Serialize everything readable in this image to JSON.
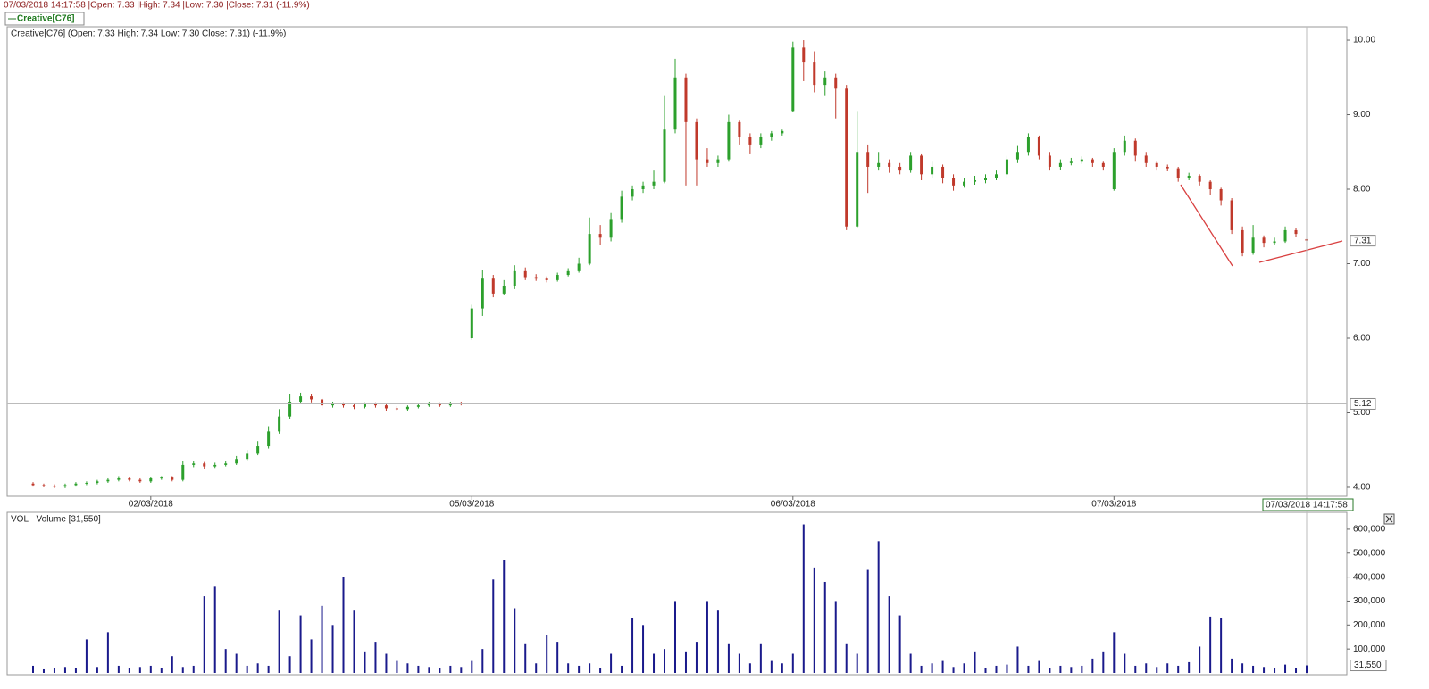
{
  "header": {
    "info": "07/03/2018 14:17:58 |Open: 7.33 |High: 7.34 |Low: 7.30 |Close: 7.31 (-11.9%)",
    "tab": "Creative[C76]"
  },
  "chart_data": [
    {
      "type": "candlestick",
      "title": "Creative[C76] (Open: 7.33  High: 7.34  Low: 7.30  Close: 7.31) (-11.9%)",
      "categories": [
        null,
        null,
        null,
        null,
        null,
        null,
        null,
        null,
        null,
        null,
        null,
        "02/03/2018",
        null,
        null,
        null,
        null,
        null,
        null,
        null,
        null,
        null,
        null,
        null,
        null,
        null,
        null,
        null,
        null,
        null,
        null,
        null,
        null,
        null,
        null,
        null,
        null,
        null,
        null,
        null,
        null,
        null,
        "05/03/2018",
        null,
        null,
        null,
        null,
        null,
        null,
        null,
        null,
        null,
        null,
        null,
        null,
        null,
        null,
        null,
        null,
        null,
        null,
        null,
        null,
        null,
        null,
        null,
        null,
        null,
        null,
        null,
        null,
        null,
        "06/03/2018",
        null,
        null,
        null,
        null,
        null,
        null,
        null,
        null,
        null,
        null,
        null,
        null,
        null,
        null,
        null,
        null,
        null,
        null,
        null,
        null,
        null,
        null,
        null,
        null,
        null,
        null,
        null,
        null,
        null,
        "07/03/2018",
        null,
        null,
        null,
        null,
        null,
        null,
        null,
        null,
        null,
        null,
        null,
        null,
        null,
        null,
        null,
        null,
        null,
        null
      ],
      "open": [
        4.05,
        4.03,
        4.02,
        4.01,
        4.03,
        4.05,
        4.06,
        4.08,
        4.1,
        4.12,
        4.1,
        4.08,
        4.12,
        4.13,
        4.1,
        4.3,
        4.32,
        4.28,
        4.3,
        4.32,
        4.38,
        4.45,
        4.55,
        4.75,
        4.95,
        5.15,
        5.22,
        5.18,
        5.1,
        5.12,
        5.1,
        5.08,
        5.12,
        5.1,
        5.06,
        5.05,
        5.08,
        5.1,
        5.12,
        5.1,
        5.13,
        6.0,
        6.4,
        6.8,
        6.6,
        6.7,
        6.9,
        6.82,
        6.8,
        6.78,
        6.85,
        6.9,
        7.0,
        7.4,
        7.35,
        7.6,
        7.9,
        8.0,
        8.05,
        8.1,
        8.8,
        9.5,
        8.9,
        8.4,
        8.35,
        8.4,
        8.9,
        8.7,
        8.6,
        8.7,
        8.75,
        9.05,
        9.9,
        9.7,
        9.4,
        9.5,
        9.35,
        7.5,
        8.5,
        8.3,
        8.35,
        8.3,
        8.25,
        8.45,
        8.2,
        8.3,
        8.15,
        8.05,
        8.1,
        8.12,
        8.15,
        8.2,
        8.4,
        8.5,
        8.7,
        8.45,
        8.3,
        8.35,
        8.38,
        8.4,
        8.35,
        8.0,
        8.5,
        8.65,
        8.45,
        8.35,
        8.3,
        8.28,
        8.15,
        8.18,
        8.1,
        8.0,
        7.85,
        7.45,
        7.15,
        7.35,
        7.28,
        7.3,
        7.45,
        7.33
      ],
      "high": [
        4.07,
        4.05,
        4.04,
        4.05,
        4.07,
        4.08,
        4.1,
        4.12,
        4.15,
        4.14,
        4.12,
        4.14,
        4.15,
        4.15,
        4.35,
        4.35,
        4.34,
        4.33,
        4.35,
        4.42,
        4.5,
        4.62,
        4.82,
        5.05,
        5.25,
        5.27,
        5.25,
        5.2,
        5.15,
        5.14,
        5.12,
        5.14,
        5.14,
        5.12,
        5.09,
        5.1,
        5.13,
        5.15,
        5.14,
        5.15,
        5.15,
        6.45,
        6.92,
        6.85,
        6.78,
        6.98,
        6.95,
        6.86,
        6.83,
        6.88,
        6.94,
        7.08,
        7.62,
        7.52,
        7.68,
        7.98,
        8.05,
        8.1,
        8.25,
        9.25,
        9.75,
        9.55,
        8.95,
        8.55,
        8.45,
        9.0,
        8.92,
        8.75,
        8.75,
        8.78,
        8.8,
        9.98,
        10.0,
        9.85,
        9.58,
        9.55,
        9.4,
        9.05,
        8.6,
        8.5,
        8.4,
        8.35,
        8.5,
        8.48,
        8.38,
        8.33,
        8.2,
        8.15,
        8.18,
        8.2,
        8.25,
        8.45,
        8.58,
        8.75,
        8.72,
        8.5,
        8.4,
        8.42,
        8.44,
        8.42,
        8.38,
        8.55,
        8.72,
        8.68,
        8.5,
        8.38,
        8.33,
        8.3,
        8.22,
        8.2,
        8.12,
        8.02,
        7.88,
        7.5,
        7.52,
        7.38,
        7.35,
        7.5,
        7.48,
        7.34
      ],
      "low": [
        4.01,
        4.0,
        3.99,
        3.99,
        4.01,
        4.03,
        4.04,
        4.06,
        4.08,
        4.08,
        4.06,
        4.06,
        4.1,
        4.08,
        4.08,
        4.27,
        4.25,
        4.26,
        4.28,
        4.3,
        4.36,
        4.43,
        4.52,
        4.72,
        4.92,
        5.12,
        5.14,
        5.06,
        5.07,
        5.07,
        5.05,
        5.06,
        5.07,
        5.02,
        5.02,
        5.03,
        5.06,
        5.08,
        5.08,
        5.08,
        5.1,
        5.98,
        6.3,
        6.55,
        6.58,
        6.66,
        6.78,
        6.77,
        6.75,
        6.76,
        6.83,
        6.88,
        6.98,
        7.25,
        7.3,
        7.55,
        7.85,
        7.95,
        8.0,
        8.08,
        8.75,
        8.05,
        8.05,
        8.3,
        8.3,
        8.38,
        8.6,
        8.48,
        8.55,
        8.65,
        8.72,
        9.03,
        9.45,
        9.3,
        9.25,
        8.95,
        7.45,
        7.48,
        7.95,
        8.25,
        8.22,
        8.2,
        8.22,
        8.12,
        8.15,
        8.08,
        7.98,
        8.02,
        8.06,
        8.08,
        8.12,
        8.15,
        8.35,
        8.45,
        8.4,
        8.25,
        8.26,
        8.32,
        8.34,
        8.3,
        8.25,
        7.98,
        8.45,
        8.38,
        8.3,
        8.25,
        8.24,
        8.1,
        8.12,
        8.05,
        7.92,
        7.78,
        7.4,
        7.1,
        7.12,
        7.22,
        7.25,
        7.28,
        7.36,
        7.3
      ],
      "close": [
        4.03,
        4.02,
        4.01,
        4.03,
        4.05,
        4.06,
        4.08,
        4.1,
        4.12,
        4.1,
        4.08,
        4.12,
        4.13,
        4.1,
        4.3,
        4.32,
        4.28,
        4.3,
        4.32,
        4.38,
        4.45,
        4.55,
        4.75,
        4.95,
        5.15,
        5.22,
        5.18,
        5.1,
        5.12,
        5.1,
        5.08,
        5.12,
        5.1,
        5.06,
        5.05,
        5.08,
        5.1,
        5.12,
        5.1,
        5.13,
        5.12,
        6.4,
        6.8,
        6.6,
        6.7,
        6.9,
        6.82,
        6.8,
        6.78,
        6.85,
        6.9,
        7.0,
        7.4,
        7.35,
        7.6,
        7.9,
        8.0,
        8.05,
        8.1,
        8.8,
        9.5,
        8.9,
        8.4,
        8.35,
        8.4,
        8.9,
        8.7,
        8.6,
        8.7,
        8.75,
        8.78,
        9.9,
        9.7,
        9.4,
        9.5,
        9.35,
        7.5,
        8.5,
        8.3,
        8.35,
        8.3,
        8.25,
        8.45,
        8.2,
        8.3,
        8.15,
        8.05,
        8.1,
        8.12,
        8.15,
        8.2,
        8.4,
        8.5,
        8.7,
        8.45,
        8.3,
        8.35,
        8.38,
        8.4,
        8.35,
        8.3,
        8.5,
        8.65,
        8.45,
        8.35,
        8.3,
        8.28,
        8.15,
        8.18,
        8.1,
        8.0,
        7.85,
        7.45,
        7.15,
        7.35,
        7.28,
        7.3,
        7.45,
        7.4,
        7.31
      ],
      "up_color": "#2ca02c",
      "down_color": "#c0392b",
      "ylim": [
        3.88,
        10.18
      ],
      "yticks": [
        {
          "value": 4,
          "label": "4.00"
        },
        {
          "value": 5,
          "label": "5.00"
        },
        {
          "value": 6,
          "label": "6.00"
        },
        {
          "value": 7,
          "label": "7.00"
        },
        {
          "value": 8,
          "label": "8.00"
        },
        {
          "value": 9,
          "label": "9.00"
        },
        {
          "value": 10,
          "label": "10.00"
        }
      ],
      "crosshair_price": 5.12,
      "crosshair_time": "07/03/2018 14:17:58"
    },
    {
      "type": "bar",
      "title": "VOL - Volume [31,550]",
      "values": [
        30000,
        15000,
        20000,
        25000,
        20000,
        140000,
        25000,
        170000,
        30000,
        20000,
        25000,
        30000,
        20000,
        70000,
        25000,
        30000,
        320000,
        360000,
        100000,
        80000,
        30000,
        40000,
        30000,
        260000,
        70000,
        240000,
        140000,
        280000,
        200000,
        400000,
        260000,
        90000,
        130000,
        80000,
        50000,
        40000,
        30000,
        25000,
        20000,
        30000,
        25000,
        50000,
        100000,
        390000,
        470000,
        270000,
        120000,
        40000,
        160000,
        130000,
        40000,
        30000,
        40000,
        20000,
        80000,
        30000,
        230000,
        200000,
        80000,
        100000,
        300000,
        90000,
        130000,
        300000,
        260000,
        120000,
        80000,
        40000,
        120000,
        50000,
        40000,
        80000,
        620000,
        440000,
        380000,
        300000,
        120000,
        80000,
        430000,
        550000,
        320000,
        240000,
        80000,
        30000,
        40000,
        50000,
        25000,
        40000,
        90000,
        20000,
        30000,
        35000,
        110000,
        30000,
        50000,
        20000,
        30000,
        25000,
        30000,
        60000,
        90000,
        170000,
        80000,
        30000,
        40000,
        25000,
        40000,
        30000,
        45000,
        110000,
        235000,
        230000,
        60000,
        40000,
        30000,
        25000,
        20000,
        35000,
        20000,
        31550
      ],
      "color": "#1a1a8c",
      "ylim": [
        0,
        663000
      ],
      "yticks": [
        {
          "value": 100000,
          "label": "100,000"
        },
        {
          "value": 200000,
          "label": "200,000"
        },
        {
          "value": 300000,
          "label": "300,000"
        },
        {
          "value": 400000,
          "label": "400,000"
        },
        {
          "value": 500000,
          "label": "500,000"
        },
        {
          "value": 600000,
          "label": "600,000"
        }
      ],
      "last_value_label": "31,550"
    }
  ]
}
